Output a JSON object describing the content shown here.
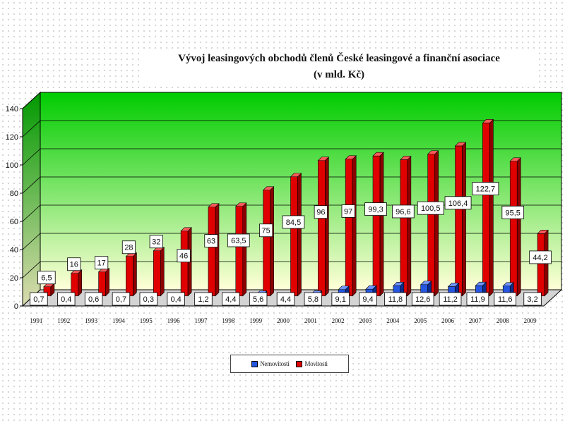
{
  "title": {
    "line1": "Vývoj leasingových obchodů členů České leasingové a finanční asociace",
    "line2": "(v mld. Kč)"
  },
  "colors": {
    "movables": "#e00000",
    "movables_side": "#8c0000",
    "movables_top": "#ff5a5a",
    "real_estate": "#2456e0",
    "real_estate_side": "#0c2c8c",
    "real_estate_top": "#6f93ff",
    "wall_top": "#00cc00",
    "wall_bottom": "#ffffd8"
  },
  "legend": {
    "items": [
      {
        "label": "Nemovitosti",
        "color": "#2456e0"
      },
      {
        "label": "Movitosti",
        "color": "#e00000"
      }
    ]
  },
  "chart_data": {
    "type": "bar",
    "grid": true,
    "legend_position": "bottom",
    "ylim": [
      0,
      140
    ],
    "y_ticks": [
      "0",
      "20",
      "40",
      "60",
      "80",
      "100",
      "120",
      "140"
    ],
    "categories": [
      "1991",
      "1992",
      "1993",
      "1994",
      "1995",
      "1996",
      "1997",
      "1998",
      "1999",
      "2000",
      "2001",
      "2002",
      "2003",
      "2004",
      "2005",
      "2006",
      "2007",
      "2008",
      "2009"
    ],
    "series": [
      {
        "name": "Nemovitosti",
        "values": [
          0.7,
          0.4,
          0.6,
          0.7,
          0.3,
          0.4,
          1.2,
          4.4,
          5.6,
          4.4,
          5.8,
          9.1,
          9.4,
          11.8,
          12.6,
          11.2,
          11.9,
          11.6,
          3.2
        ],
        "labels": [
          "0,7",
          "0,4",
          "0,6",
          "0,7",
          "0,3",
          "0,4",
          "1,2",
          "4,4",
          "5,6",
          "4,4",
          "5,8",
          "9,1",
          "9,4",
          "11,8",
          "12,6",
          "11,2",
          "11,9",
          "11,6",
          "3,2"
        ]
      },
      {
        "name": "Movitosti",
        "values": [
          6.5,
          16,
          17,
          28,
          32,
          46,
          63,
          63.5,
          75,
          84.5,
          96,
          97,
          99.3,
          96.6,
          100.5,
          106.4,
          122.7,
          95.5,
          44.2
        ],
        "labels": [
          "6,5",
          "16",
          "17",
          "28",
          "32",
          "46",
          "63",
          "63,5",
          "75",
          "84,5",
          "96",
          "97",
          "99,3",
          "96,6",
          "100,5",
          "106,4",
          "122,7",
          "95,5",
          "44,2"
        ]
      }
    ]
  }
}
